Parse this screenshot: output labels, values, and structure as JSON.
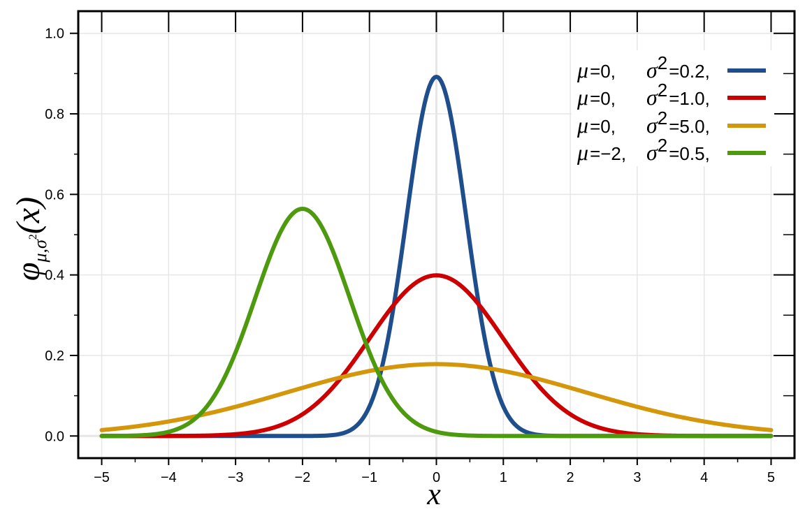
{
  "chart_data": {
    "type": "line",
    "xlabel": "x",
    "ylabel": "φμ,σ²(x)",
    "ylabel_parts": {
      "main": "φ",
      "sub": "μ,σ",
      "sup": "2",
      "arg": "(x)"
    },
    "xlim": [
      -5.35,
      5.35
    ],
    "ylim": [
      -0.055,
      1.055
    ],
    "x_ticks": [
      -5,
      -4,
      -3,
      -2,
      -1,
      0,
      1,
      2,
      3,
      4,
      5
    ],
    "x_tick_labels": [
      "−5",
      "−4",
      "−3",
      "−2",
      "−1",
      "0",
      "1",
      "2",
      "3",
      "4",
      "5"
    ],
    "y_ticks": [
      0,
      0.2,
      0.4,
      0.6,
      0.8,
      1.0
    ],
    "y_tick_labels": [
      "0.0",
      "0.2",
      "0.4",
      "0.6",
      "0.8",
      "1.0"
    ],
    "grid": true,
    "legend_position": "top-right",
    "x": [
      -5,
      -4.5,
      -4,
      -3.5,
      -3,
      -2.5,
      -2,
      -1.5,
      -1,
      -0.5,
      0,
      0.5,
      1,
      1.5,
      2,
      2.5,
      3,
      3.5,
      4,
      4.5,
      5
    ],
    "series": [
      {
        "mu": "0",
        "sigma2": "0.2",
        "color": "#1f4e8c",
        "values": [
          0.0,
          0.0,
          0.0,
          0.0,
          0.0,
          0.0,
          4.1e-05,
          0.003203,
          0.07306,
          0.48394,
          0.89206,
          0.48394,
          0.07306,
          0.003203,
          4.1e-05,
          0.0,
          0.0,
          0.0,
          0.0,
          0.0,
          0.0
        ]
      },
      {
        "mu": "0",
        "sigma2": "1.0",
        "color": "#cc0000",
        "values": [
          1e-06,
          1.6e-05,
          0.000134,
          0.000873,
          0.004432,
          0.017528,
          0.053991,
          0.129518,
          0.241971,
          0.352065,
          0.398942,
          0.352065,
          0.241971,
          0.129518,
          0.053991,
          0.017528,
          0.004432,
          0.000873,
          0.000134,
          1.6e-05,
          1e-06
        ]
      },
      {
        "mu": "0",
        "sigma2": "5.0",
        "color": "#d4960a",
        "values": [
          0.014645,
          0.024484,
          0.036166,
          0.052773,
          0.072949,
          0.095347,
          0.119552,
          0.142906,
          0.161434,
          0.174114,
          0.178412,
          0.174114,
          0.161434,
          0.142906,
          0.119552,
          0.095347,
          0.072949,
          0.052773,
          0.036166,
          0.024484,
          0.014645
        ]
      },
      {
        "mu": "−2",
        "sigma2": "0.5",
        "color": "#4d9a0e",
        "values": [
          6.9e-05,
          0.000902,
          0.010333,
          0.059212,
          0.207554,
          0.439391,
          0.56419,
          0.439391,
          0.207554,
          0.059212,
          0.010333,
          0.000902,
          6.9e-05,
          0.0,
          0.0,
          0.0,
          0.0,
          0.0,
          0.0,
          0.0,
          0.0
        ]
      }
    ]
  },
  "legend": {
    "mu_symbol": "μ",
    "sigma_symbol": "σ",
    "equals": "=",
    "sup": "2",
    "comma": ","
  }
}
